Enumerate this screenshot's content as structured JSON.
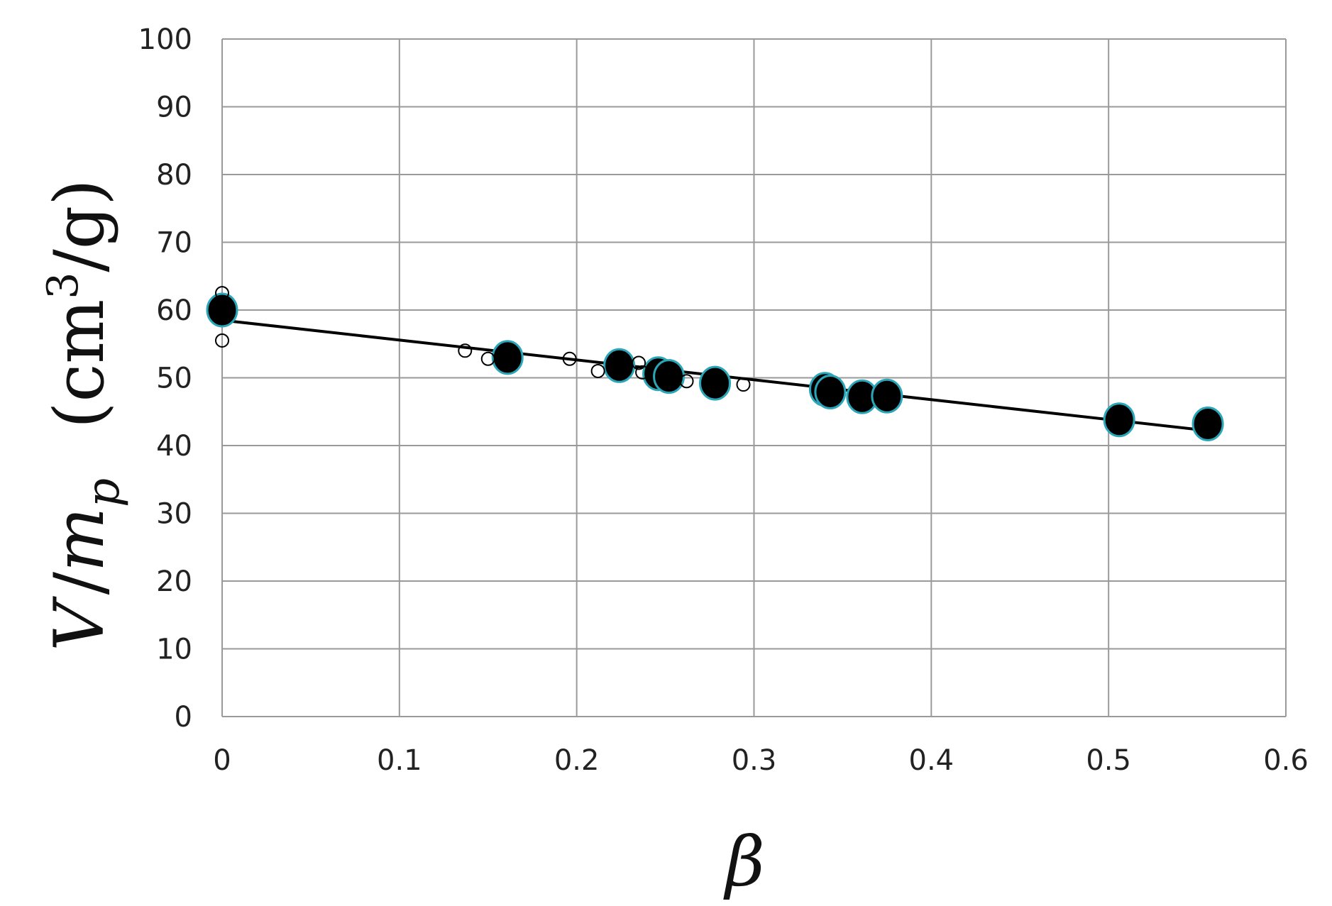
{
  "chart_data": {
    "type": "scatter",
    "xlabel": "β",
    "ylabel": {
      "symbol_v": "V",
      "slash": "/",
      "symbol_m": "m",
      "subscript": "p",
      "unit_open": "(cm",
      "unit_sup": "3",
      "unit_close": "/g)"
    },
    "xlim": [
      0,
      0.6
    ],
    "ylim": [
      0,
      100
    ],
    "x_ticks": [
      "0",
      "0.1",
      "0.2",
      "0.3",
      "0.4",
      "0.5",
      "0.6"
    ],
    "y_ticks": [
      "0",
      "10",
      "20",
      "30",
      "40",
      "50",
      "60",
      "70",
      "80",
      "90",
      "100"
    ],
    "grid": true,
    "legend": "none",
    "colors": {
      "grid": "#9a9a9a",
      "filled_marker": "#000000",
      "filled_marker_edge": "#2aa6b8",
      "open_marker": "#000000",
      "fit_line": "#000000"
    },
    "series": [
      {
        "marker": "filled-circle",
        "x": [
          0.0,
          0.161,
          0.224,
          0.246,
          0.252,
          0.278,
          0.34,
          0.343,
          0.361,
          0.375,
          0.506,
          0.556
        ],
        "y": [
          60.0,
          53.0,
          51.8,
          50.6,
          50.2,
          49.2,
          48.3,
          47.9,
          47.2,
          47.3,
          43.8,
          43.2
        ]
      },
      {
        "marker": "open-circle",
        "x": [
          0.0,
          0.0,
          0.137,
          0.15,
          0.196,
          0.212,
          0.235,
          0.237,
          0.262,
          0.294
        ],
        "y": [
          62.5,
          55.5,
          54.0,
          52.8,
          52.8,
          51.0,
          52.2,
          50.8,
          49.5,
          49.0
        ]
      }
    ],
    "fit_line": {
      "x": [
        0.0,
        0.556
      ],
      "y": [
        58.5,
        42.2
      ]
    }
  }
}
